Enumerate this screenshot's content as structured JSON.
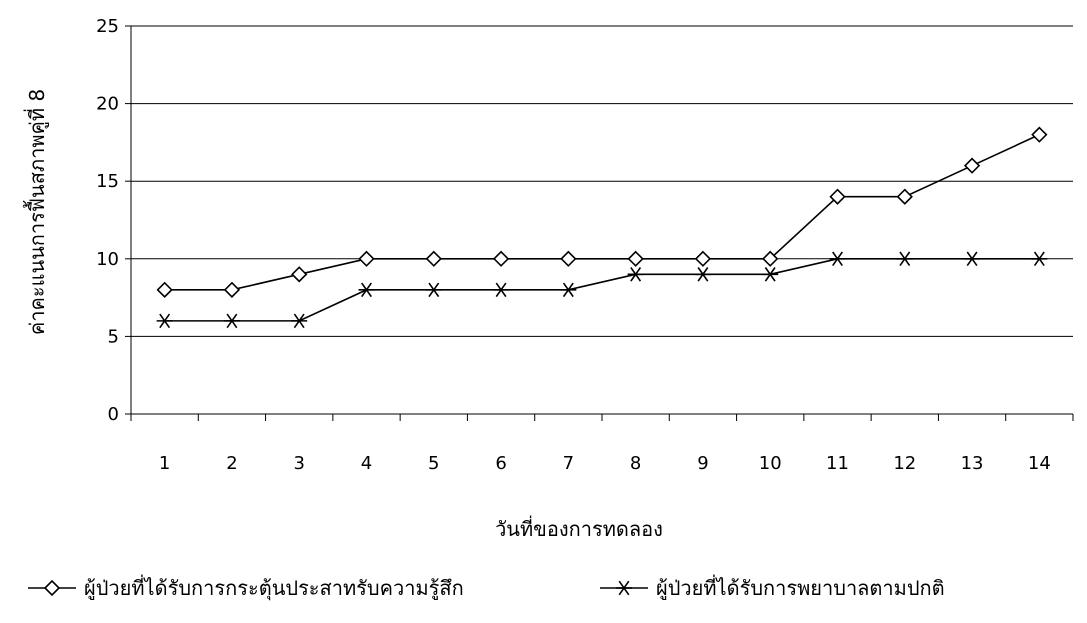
{
  "chart_data": {
    "type": "line",
    "title": "",
    "xlabel": "วันที่ของการทดลอง",
    "ylabel": "ค่าคะแนนการฟื้นสภาพคู่ที่ 8",
    "categories": [
      "1",
      "2",
      "3",
      "4",
      "5",
      "6",
      "7",
      "8",
      "9",
      "10",
      "11",
      "12",
      "13",
      "14"
    ],
    "ylim": [
      0,
      25
    ],
    "yticks": [
      0,
      5,
      10,
      15,
      20,
      25
    ],
    "grid": true,
    "legend_position": "bottom",
    "series": [
      {
        "name": "ผู้ป่วยที่ได้รับการกระตุ้นประสาทรับความรู้สึก",
        "marker": "diamond",
        "values": [
          8,
          8,
          9,
          10,
          10,
          10,
          10,
          10,
          10,
          10,
          14,
          14,
          16,
          18
        ]
      },
      {
        "name": "ผู้ป่วยที่ได้รับการพยาบาลตามปกติ",
        "marker": "asterisk",
        "values": [
          6,
          6,
          6,
          8,
          8,
          8,
          8,
          9,
          9,
          9,
          10,
          10,
          10,
          10
        ]
      }
    ],
    "line_color": "#000000"
  }
}
